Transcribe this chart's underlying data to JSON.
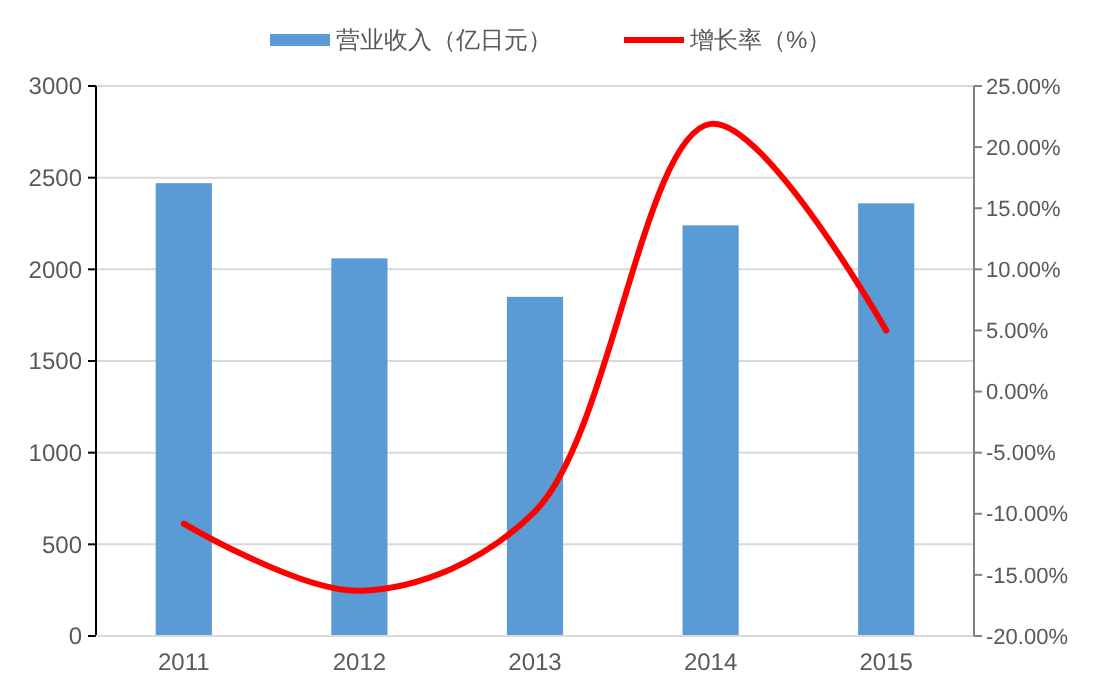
{
  "chart_data": {
    "type": "bar",
    "categories": [
      "2011",
      "2012",
      "2013",
      "2014",
      "2015"
    ],
    "series": [
      {
        "name": "营业收入（亿日元）",
        "color": "#5b9bd5",
        "values": [
          2470,
          2060,
          1850,
          2240,
          2360
        ]
      },
      {
        "name": "增长率（%）",
        "type": "line",
        "axis": "y2",
        "color": "#ff0000",
        "values": [
          -10.8,
          -16.3,
          -9.8,
          21.9,
          5.0
        ]
      }
    ],
    "ylim": [
      0,
      3000
    ],
    "yticks": [
      0,
      500,
      1000,
      1500,
      2000,
      2500,
      3000
    ],
    "y2lim": [
      -20,
      25
    ],
    "y2ticks": [
      {
        "value": -20,
        "label": "-20.00%"
      },
      {
        "value": -15,
        "label": "-15.00%"
      },
      {
        "value": -10,
        "label": "-10.00%"
      },
      {
        "value": -5,
        "label": "-5.00%"
      },
      {
        "value": 0,
        "label": "0.00%"
      },
      {
        "value": 5,
        "label": "5.00%"
      },
      {
        "value": 10,
        "label": "10.00%"
      },
      {
        "value": 15,
        "label": "15.00%"
      },
      {
        "value": 20,
        "label": "20.00%"
      },
      {
        "value": 25,
        "label": "25.00%"
      }
    ],
    "grid": "y",
    "legend": "top",
    "marker": "none",
    "line_style": "solid"
  }
}
